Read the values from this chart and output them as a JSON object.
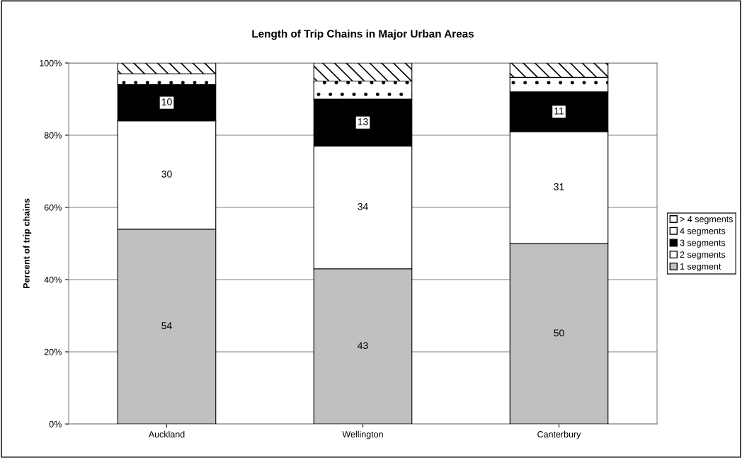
{
  "chart_data": {
    "type": "bar",
    "stacked": true,
    "title": "Length of Trip Chains in Major Urban Areas",
    "ylabel": "Percent of trip chains",
    "categories": [
      "Auckland",
      "Wellington",
      "Canterbury"
    ],
    "series": [
      {
        "name": "1 segment",
        "color": "#c0c0c0",
        "values": [
          54,
          43,
          50
        ],
        "value_labels": [
          "54",
          "43",
          "50"
        ]
      },
      {
        "name": "2 segments",
        "color": "#ffffff",
        "values": [
          30,
          34,
          31
        ],
        "value_labels": [
          "30",
          "34",
          "31"
        ]
      },
      {
        "name": "3 segments",
        "color": "#000000",
        "values": [
          10,
          13,
          11
        ],
        "value_labels": [
          "10",
          "13",
          "11"
        ]
      },
      {
        "name": "4 segments",
        "color": "#ffffff",
        "values": [
          3,
          5,
          4
        ]
      },
      {
        "name": "> 4 segments",
        "color": "#ffffff",
        "values": [
          3,
          5,
          4
        ]
      }
    ],
    "ylim": [
      0,
      100
    ],
    "yticks": [
      {
        "value": 0,
        "label": "0%"
      },
      {
        "value": 20,
        "label": "20%"
      },
      {
        "value": 40,
        "label": "40%"
      },
      {
        "value": 60,
        "label": "60%"
      },
      {
        "value": 80,
        "label": "80%"
      },
      {
        "value": 100,
        "label": "100%"
      }
    ],
    "grid": "y",
    "legend": "right"
  }
}
